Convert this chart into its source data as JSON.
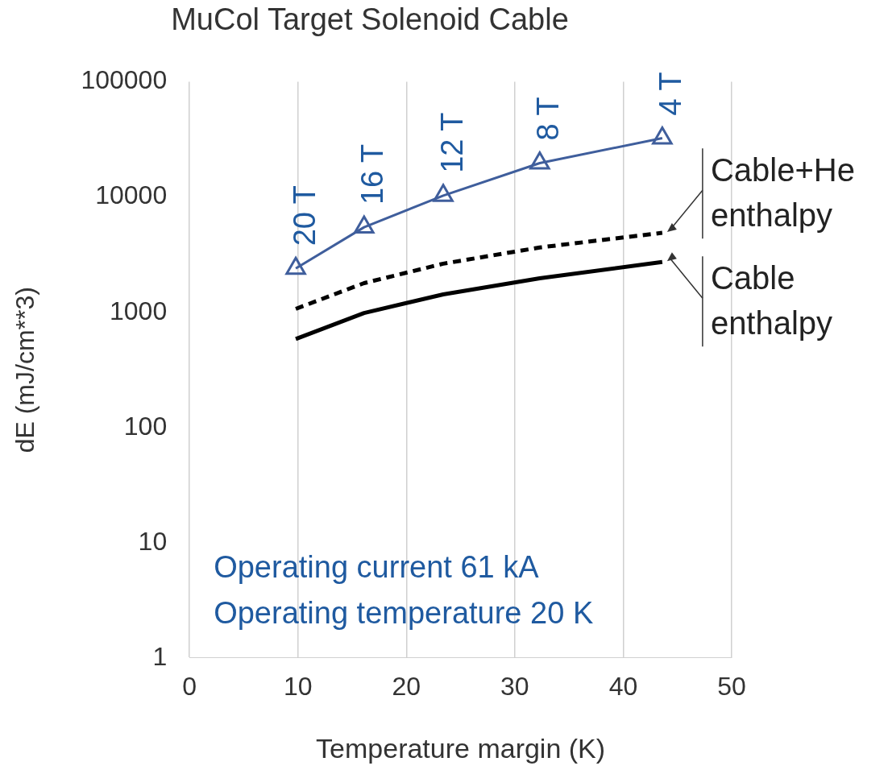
{
  "chart_data": {
    "type": "line",
    "title": "MuCol Target Solenoid Cable",
    "xlabel": "Temperature margin (K)",
    "ylabel": "dE (mJ/cm**3)",
    "x": [
      9.8,
      16.1,
      23.4,
      32.3,
      43.6
    ],
    "series": [
      {
        "color": "#3f5e9c",
        "marker": "triangle",
        "line_style": "solid",
        "values": [
          2400,
          5470,
          10300,
          19700,
          32500
        ]
      },
      {
        "name": "Cable+He enthalpy",
        "color": "#000000",
        "marker": "none",
        "line_style": "dashed",
        "values": [
          1070,
          1790,
          2640,
          3650,
          4890
        ]
      },
      {
        "name": "Cable enthalpy",
        "color": "#000000",
        "marker": "none",
        "line_style": "solid",
        "values": [
          586,
          985,
          1430,
          1970,
          2730
        ]
      }
    ],
    "xlim": [
      0,
      50
    ],
    "xticks": [
      0,
      10,
      20,
      30,
      40,
      50
    ],
    "ylim": [
      1,
      100000
    ],
    "yticks": [
      1,
      10,
      100,
      1000,
      10000,
      100000
    ],
    "log": "y",
    "grid": "x",
    "legend": false,
    "annotations": [
      {
        "text": "20 T",
        "x": 9.8,
        "y": 2400
      },
      {
        "text": "16 T",
        "x": 16.1,
        "y": 5470
      },
      {
        "text": "12 T",
        "x": 23.4,
        "y": 10300
      },
      {
        "text": "8 T",
        "x": 32.3,
        "y": 19700
      },
      {
        "text": "4 T",
        "x": 43.6,
        "y": 32500
      },
      "Operating current 61 kA",
      "Operating temperature 20 K"
    ]
  }
}
